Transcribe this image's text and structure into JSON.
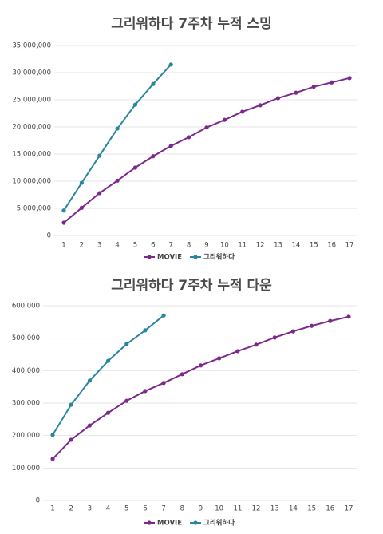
{
  "chart_data": [
    {
      "type": "line",
      "title": "그리워하다 7주차 누적 스밍",
      "categories": [
        "1",
        "2",
        "3",
        "4",
        "5",
        "6",
        "7",
        "8",
        "9",
        "10",
        "11",
        "12",
        "13",
        "14",
        "15",
        "16",
        "17"
      ],
      "series": [
        {
          "name": "MOVIE",
          "color": "#7b2a8c",
          "values": [
            2350000,
            5100000,
            7800000,
            10100000,
            12500000,
            14600000,
            16500000,
            18100000,
            19900000,
            21300000,
            22800000,
            24000000,
            25300000,
            26300000,
            27400000,
            28200000,
            29000000
          ]
        },
        {
          "name": "그리워하다",
          "color": "#2a86a0",
          "values": [
            4600000,
            9700000,
            14700000,
            19700000,
            24100000,
            27900000,
            31500000,
            null,
            null,
            null,
            null,
            null,
            null,
            null,
            null,
            null,
            null
          ]
        }
      ],
      "ylim": [
        0,
        35000000
      ],
      "yticks": [
        0,
        {
          "value": 5000000,
          "label": "5,000,000"
        },
        {
          "value": 10000000,
          "label": "10,000,000"
        },
        {
          "value": 15000000,
          "label": "15,000,000"
        },
        {
          "value": 20000000,
          "label": "20,000,000"
        },
        {
          "value": 25000000,
          "label": "25,000,000"
        },
        {
          "value": 30000000,
          "label": "30,000,000"
        },
        {
          "value": 35000000,
          "label": "35,000,000"
        }
      ],
      "grid": true,
      "legend": "bottom"
    },
    {
      "type": "line",
      "title": "그리워하다 7주차 누적 다운",
      "categories": [
        "1",
        "2",
        "3",
        "4",
        "5",
        "6",
        "7",
        "8",
        "9",
        "10",
        "11",
        "12",
        "13",
        "14",
        "15",
        "16",
        "17"
      ],
      "series": [
        {
          "name": "MOVIE",
          "color": "#7b2a8c",
          "values": [
            128000,
            187000,
            231000,
            270000,
            307000,
            337000,
            362000,
            389000,
            416000,
            438000,
            460000,
            480000,
            502000,
            521000,
            538000,
            553000,
            566000
          ]
        },
        {
          "name": "그리워하다",
          "color": "#2a86a0",
          "values": [
            202000,
            295000,
            369000,
            430000,
            482000,
            524000,
            570000,
            null,
            null,
            null,
            null,
            null,
            null,
            null,
            null,
            null,
            null
          ]
        }
      ],
      "ylim": [
        0,
        600000
      ],
      "yticks": [
        0,
        {
          "value": 100000,
          "label": "100,000"
        },
        {
          "value": 200000,
          "label": "200,000"
        },
        {
          "value": 300000,
          "label": "300,000"
        },
        {
          "value": 400000,
          "label": "400,000"
        },
        {
          "value": 500000,
          "label": "500,000"
        },
        {
          "value": 600000,
          "label": "600,000"
        }
      ],
      "grid": true,
      "legend": "bottom"
    }
  ]
}
